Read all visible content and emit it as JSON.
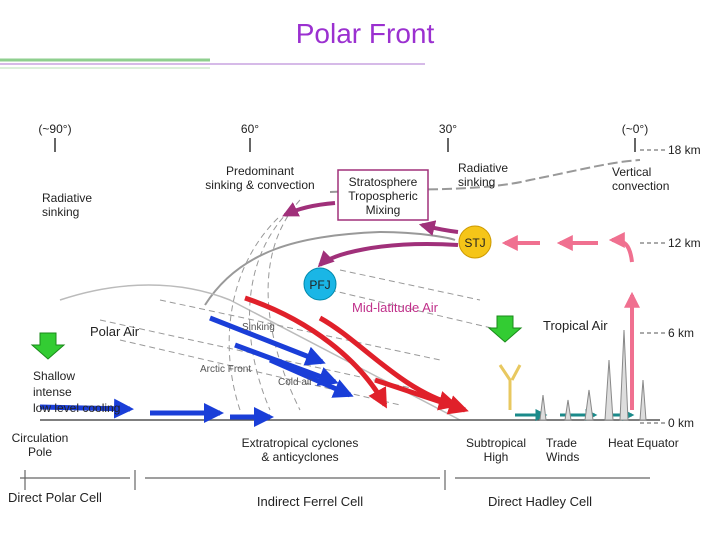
{
  "header": {
    "title": "Polar Front"
  },
  "latitudes": [
    "(~90°)",
    "60°",
    "30°",
    "(~0°)"
  ],
  "heights": [
    "18 km",
    "12 km",
    "6 km",
    "0 km"
  ],
  "labels": {
    "radiative_sinking_polar": [
      "Radiative",
      "sinking"
    ],
    "predominant": [
      "Predominant",
      "sinking & convection"
    ],
    "mixing": [
      "Stratosphere",
      "Tropospheric",
      "Mixing"
    ],
    "radiative_sinking_sub": [
      "Radiative",
      "sinking"
    ],
    "vertical_convection": [
      "Vertical",
      "convection"
    ],
    "stj": "STJ",
    "pfj": "PFJ",
    "midlatitude_air": "Mid-latitude Air",
    "polar_air": "Polar Air",
    "tropical_air": "Tropical Air",
    "cooling": [
      "Shallow",
      "intense",
      "low level cooling"
    ],
    "sinking": "Sinking",
    "arctic_front": "Arctic Front",
    "cold_air": "Cold air"
  },
  "bottom": {
    "pole": [
      "Circulation",
      "Pole"
    ],
    "cyclones": [
      "Extratropical cyclones",
      "& anticyclones"
    ],
    "high": [
      "Subtropical",
      "High"
    ],
    "trades": [
      "Trade",
      "Winds"
    ],
    "equator": "Heat Equator"
  },
  "cells": [
    "Direct Polar Cell",
    "Indirect Ferrel Cell",
    "Direct Hadley Cell"
  ]
}
